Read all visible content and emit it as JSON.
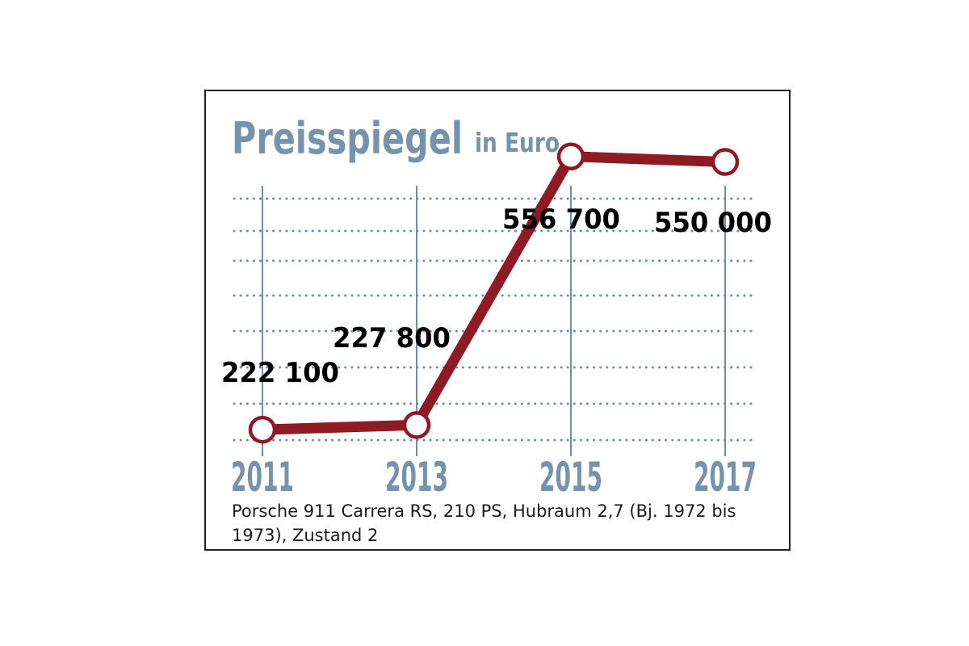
{
  "colors": {
    "title": "#7593ad",
    "grid": "#6d8fac",
    "line": "#8e1a24",
    "marker_fill": "#ffffff",
    "value_label": "#000000",
    "frame": "#222222"
  },
  "chart_data": {
    "type": "line",
    "title": "Preisspiegel",
    "subtitle": "in Euro",
    "xlabel": "",
    "ylabel": "",
    "categories": [
      "2011",
      "2013",
      "2015",
      "2017"
    ],
    "series": [
      {
        "values": [
          222100,
          227800,
          556700,
          550000
        ]
      }
    ],
    "data_labels": [
      "222 100",
      "227 800",
      "556 700",
      "550 000"
    ],
    "ylim": [
      150000,
      600000
    ],
    "y_ticks_shown": false,
    "grid": "dotted horizontal, solid vertical at each year",
    "legend": "none"
  },
  "caption": "Porsche 911 Carrera RS, 210 PS, Hubraum 2,7 (Bj. 1972 bis 1973), Zustand 2"
}
